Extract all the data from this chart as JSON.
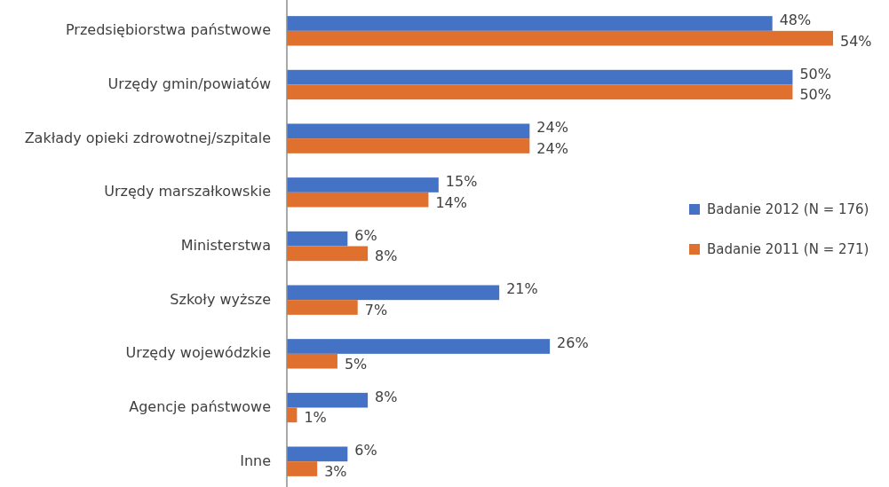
{
  "chart_data": {
    "type": "bar",
    "orientation": "horizontal",
    "categories": [
      "Przedsiębiorstwa państwowe",
      "Urzędy gmin/powiatów",
      "Zakłady opieki zdrowotnej/szpitale",
      "Urzędy marszałkowskie",
      "Ministerstwa",
      "Szkoły wyższe",
      "Urzędy wojewódzkie",
      "Agencje państwowe",
      "Inne"
    ],
    "series": [
      {
        "name": "Badanie 2012 (N = 176)",
        "color": "#4472c4",
        "values": [
          48,
          50,
          24,
          15,
          6,
          21,
          26,
          8,
          6
        ],
        "value_labels": [
          "48%",
          "50%",
          "24%",
          "15%",
          "6%",
          "21%",
          "26%",
          "8%",
          "6%"
        ]
      },
      {
        "name": "Badanie 2011 (N = 271)",
        "color": "#e0702e",
        "values": [
          54,
          50,
          24,
          14,
          8,
          7,
          5,
          1,
          3
        ],
        "value_labels": [
          "54%",
          "50%",
          "24%",
          "14%",
          "8%",
          "7%",
          "5%",
          "1%",
          "3%"
        ]
      }
    ],
    "legend": "right"
  }
}
